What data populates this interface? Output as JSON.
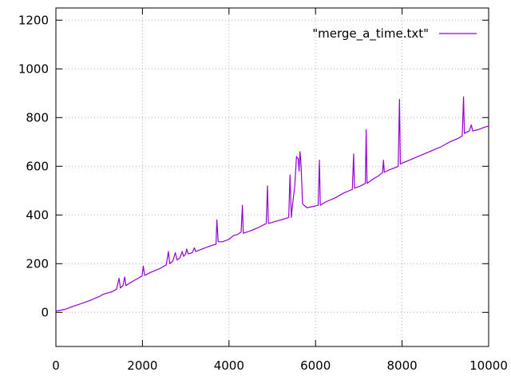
{
  "chart_data": {
    "type": "line",
    "title": "",
    "xlabel": "",
    "ylabel": "",
    "xlim": [
      0,
      10000
    ],
    "ylim": [
      -140,
      1250
    ],
    "xticks": [
      0,
      2000,
      4000,
      6000,
      8000,
      10000
    ],
    "yticks": [
      0,
      200,
      400,
      600,
      800,
      1000,
      1200
    ],
    "grid": true,
    "legend_position": "top-right",
    "series": [
      {
        "name": "\"merge_a_time.txt\"",
        "color": "#9400d3",
        "points": [
          [
            0,
            5
          ],
          [
            200,
            12
          ],
          [
            400,
            25
          ],
          [
            600,
            37
          ],
          [
            800,
            50
          ],
          [
            1000,
            65
          ],
          [
            1100,
            75
          ],
          [
            1200,
            80
          ],
          [
            1300,
            85
          ],
          [
            1400,
            95
          ],
          [
            1460,
            140
          ],
          [
            1490,
            100
          ],
          [
            1550,
            110
          ],
          [
            1590,
            145
          ],
          [
            1620,
            110
          ],
          [
            1700,
            120
          ],
          [
            1800,
            130
          ],
          [
            1900,
            140
          ],
          [
            1990,
            150
          ],
          [
            2020,
            190
          ],
          [
            2050,
            152
          ],
          [
            2200,
            165
          ],
          [
            2400,
            180
          ],
          [
            2550,
            195
          ],
          [
            2600,
            250
          ],
          [
            2630,
            200
          ],
          [
            2700,
            210
          ],
          [
            2760,
            245
          ],
          [
            2800,
            215
          ],
          [
            2870,
            225
          ],
          [
            2920,
            250
          ],
          [
            2950,
            230
          ],
          [
            3000,
            240
          ],
          [
            3020,
            260
          ],
          [
            3060,
            240
          ],
          [
            3150,
            245
          ],
          [
            3200,
            265
          ],
          [
            3230,
            250
          ],
          [
            3400,
            262
          ],
          [
            3600,
            275
          ],
          [
            3700,
            280
          ],
          [
            3720,
            380
          ],
          [
            3750,
            290
          ],
          [
            3850,
            290
          ],
          [
            4000,
            300
          ],
          [
            4100,
            315
          ],
          [
            4200,
            320
          ],
          [
            4280,
            330
          ],
          [
            4310,
            440
          ],
          [
            4330,
            325
          ],
          [
            4500,
            335
          ],
          [
            4700,
            350
          ],
          [
            4860,
            365
          ],
          [
            4890,
            520
          ],
          [
            4910,
            365
          ],
          [
            5100,
            375
          ],
          [
            5300,
            385
          ],
          [
            5380,
            390
          ],
          [
            5410,
            565
          ],
          [
            5440,
            390
          ],
          [
            5470,
            445
          ],
          [
            5520,
            520
          ],
          [
            5560,
            640
          ],
          [
            5600,
            630
          ],
          [
            5620,
            580
          ],
          [
            5640,
            660
          ],
          [
            5660,
            620
          ],
          [
            5680,
            540
          ],
          [
            5700,
            445
          ],
          [
            5800,
            430
          ],
          [
            5950,
            435
          ],
          [
            6060,
            440
          ],
          [
            6090,
            625
          ],
          [
            6110,
            440
          ],
          [
            6250,
            455
          ],
          [
            6450,
            470
          ],
          [
            6650,
            490
          ],
          [
            6850,
            505
          ],
          [
            6880,
            650
          ],
          [
            6900,
            510
          ],
          [
            7050,
            520
          ],
          [
            7150,
            530
          ],
          [
            7170,
            750
          ],
          [
            7190,
            530
          ],
          [
            7350,
            550
          ],
          [
            7450,
            560
          ],
          [
            7550,
            575
          ],
          [
            7570,
            625
          ],
          [
            7590,
            575
          ],
          [
            7700,
            585
          ],
          [
            7850,
            595
          ],
          [
            7910,
            600
          ],
          [
            7940,
            875
          ],
          [
            7960,
            610
          ],
          [
            8100,
            620
          ],
          [
            8300,
            635
          ],
          [
            8500,
            650
          ],
          [
            8700,
            665
          ],
          [
            8900,
            680
          ],
          [
            9100,
            700
          ],
          [
            9300,
            715
          ],
          [
            9390,
            725
          ],
          [
            9420,
            885
          ],
          [
            9440,
            735
          ],
          [
            9550,
            745
          ],
          [
            9600,
            770
          ],
          [
            9630,
            745
          ],
          [
            9750,
            750
          ],
          [
            9900,
            760
          ],
          [
            10000,
            765
          ]
        ]
      }
    ]
  }
}
